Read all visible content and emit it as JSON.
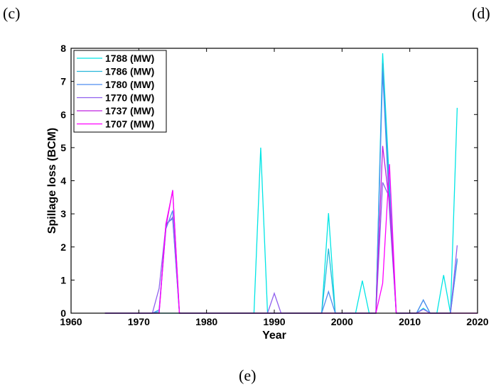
{
  "panel_labels": {
    "top_left": "(c)",
    "top_right": "(d)",
    "bottom": "(e)"
  },
  "chart_data": {
    "type": "line",
    "title": "",
    "xlabel": "Year",
    "ylabel": "Spillage loss (BCM)",
    "xlim": [
      1960,
      2020
    ],
    "ylim": [
      0,
      8
    ],
    "xticks": [
      1960,
      1970,
      1980,
      1990,
      2000,
      2010,
      2020
    ],
    "yticks": [
      0,
      1,
      2,
      3,
      4,
      5,
      6,
      7,
      8
    ],
    "grid": false,
    "legend_position": "top-left",
    "series": [
      {
        "name": "1788 (MW)",
        "color": "#00e5e5",
        "points": [
          [
            1965,
            0
          ],
          [
            1987,
            0
          ],
          [
            1988,
            5.0
          ],
          [
            1989,
            0
          ],
          [
            1997,
            0
          ],
          [
            1998,
            3.02
          ],
          [
            1999,
            0
          ],
          [
            2002,
            0
          ],
          [
            2003,
            0.98
          ],
          [
            2004,
            0
          ],
          [
            2005,
            0
          ],
          [
            2006,
            7.85
          ],
          [
            2007,
            3.9
          ],
          [
            2008,
            0
          ],
          [
            2011,
            0
          ],
          [
            2012,
            0.15
          ],
          [
            2013,
            0
          ],
          [
            2014,
            0
          ],
          [
            2015,
            1.15
          ],
          [
            2016,
            0
          ],
          [
            2017,
            6.2
          ]
        ]
      },
      {
        "name": "1786 (MW)",
        "color": "#27b7db",
        "points": [
          [
            1965,
            0
          ],
          [
            1972,
            0
          ],
          [
            1973,
            0.05
          ],
          [
            1974,
            2.7
          ],
          [
            1975,
            2.85
          ],
          [
            1976,
            0
          ],
          [
            1997,
            0
          ],
          [
            1998,
            1.95
          ],
          [
            1999,
            0
          ],
          [
            2005,
            0
          ],
          [
            2006,
            7.55
          ],
          [
            2007,
            3.5
          ],
          [
            2008,
            0
          ],
          [
            2011,
            0
          ],
          [
            2012,
            0.4
          ],
          [
            2013,
            0
          ],
          [
            2016,
            0
          ],
          [
            2017,
            1.6
          ]
        ]
      },
      {
        "name": "1780 (MW)",
        "color": "#4f8ef0",
        "points": [
          [
            1965,
            0
          ],
          [
            1972,
            0
          ],
          [
            1973,
            0.1
          ],
          [
            1974,
            2.55
          ],
          [
            1975,
            3.1
          ],
          [
            1976,
            0
          ],
          [
            1997,
            0
          ],
          [
            1998,
            0.65
          ],
          [
            1999,
            0
          ],
          [
            2005,
            0
          ],
          [
            2006,
            7.3
          ],
          [
            2007,
            3.1
          ],
          [
            2008,
            0
          ],
          [
            2011,
            0
          ],
          [
            2012,
            0.4
          ],
          [
            2013,
            0
          ],
          [
            2016,
            0
          ],
          [
            2017,
            1.65
          ]
        ]
      },
      {
        "name": "1770 (MW)",
        "color": "#9060ee",
        "points": [
          [
            1965,
            0
          ],
          [
            1972,
            0
          ],
          [
            1973,
            0.75
          ],
          [
            1974,
            2.65
          ],
          [
            1975,
            2.9
          ],
          [
            1976,
            0
          ],
          [
            1989,
            0
          ],
          [
            1990,
            0.6
          ],
          [
            1991,
            0
          ],
          [
            2005,
            0
          ],
          [
            2006,
            3.95
          ],
          [
            2007,
            3.5
          ],
          [
            2008,
            0
          ],
          [
            2011,
            0
          ],
          [
            2012,
            0.12
          ],
          [
            2013,
            0
          ],
          [
            2016,
            0
          ],
          [
            2017,
            2.05
          ]
        ]
      },
      {
        "name": "1737 (MW)",
        "color": "#c020e0",
        "points": [
          [
            1965,
            0
          ],
          [
            1973,
            0
          ],
          [
            1974,
            2.6
          ],
          [
            1975,
            3.72
          ],
          [
            1976,
            0
          ],
          [
            2005,
            0
          ],
          [
            2006,
            5.05
          ],
          [
            2007,
            3.3
          ],
          [
            2008,
            0
          ],
          [
            2020,
            0
          ]
        ]
      },
      {
        "name": "1707 (MW)",
        "color": "#ff00ff",
        "points": [
          [
            1965,
            0
          ],
          [
            1973,
            0
          ],
          [
            1974,
            2.7
          ],
          [
            1975,
            3.7
          ],
          [
            1976,
            0
          ],
          [
            2005,
            0
          ],
          [
            2006,
            0.9
          ],
          [
            2007,
            4.5
          ],
          [
            2008,
            0
          ],
          [
            2020,
            0
          ]
        ]
      }
    ]
  }
}
